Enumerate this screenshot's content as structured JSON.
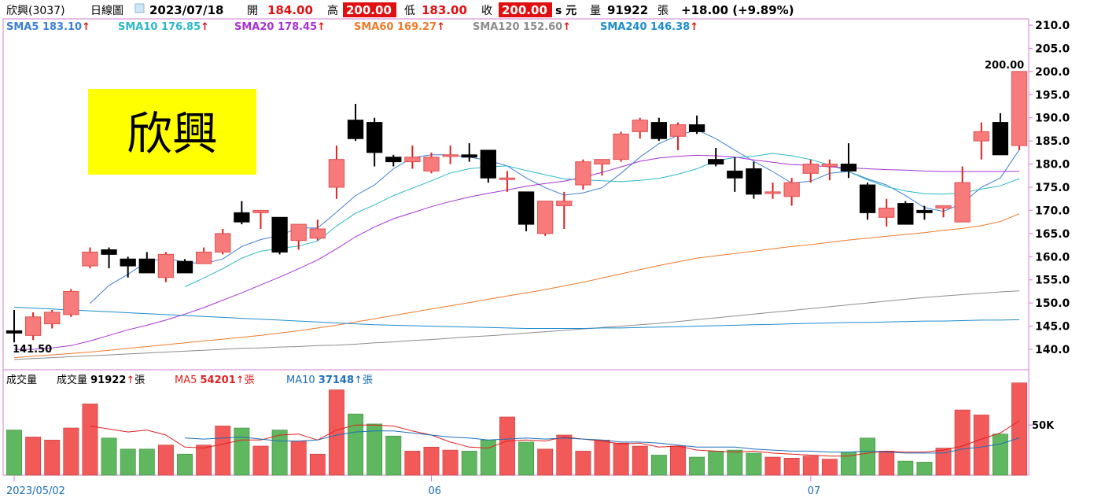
{
  "header": {
    "name": "欣興(3037)",
    "period": "日線圖",
    "date": "2023/07/18",
    "open_label": "開",
    "open": "184.00",
    "high_label": "高",
    "high": "200.00",
    "low_label": "低",
    "low": "183.00",
    "close_label": "收",
    "close": "200.00",
    "unit": "s 元",
    "vol_label": "量",
    "vol": "91922",
    "vol_unit": "張",
    "change": "+18.00 (+9.89%)"
  },
  "stock_label": "欣興",
  "ma_legend": [
    {
      "label": "SMA5",
      "value": "183.10",
      "color": "#3d7fd6"
    },
    {
      "label": "SMA10",
      "value": "176.85",
      "color": "#2bb8c8"
    },
    {
      "label": "SMA20",
      "value": "178.45",
      "color": "#a633d6"
    },
    {
      "label": "SMA60",
      "value": "169.27",
      "color": "#f07a2a"
    },
    {
      "label": "SMA120",
      "value": "152.60",
      "color": "#8c8c8c"
    },
    {
      "label": "SMA240",
      "value": "146.38",
      "color": "#1c8ccf"
    }
  ],
  "vol_legend": {
    "title": "成交量",
    "items": [
      {
        "label": "成交量",
        "value": "91922",
        "unit": "張",
        "color": "#000000"
      },
      {
        "label": "MA5",
        "value": "54201",
        "unit": "張",
        "color": "#e02020"
      },
      {
        "label": "MA10",
        "value": "37148",
        "unit": "張",
        "color": "#1c6fb8"
      }
    ]
  },
  "annotations": {
    "high_label": "200.00",
    "low_label": "141.50"
  },
  "colors": {
    "up": "#f77b7b",
    "down": "#000000",
    "vol_up": "#f25a5a",
    "vol_down": "#5fb85f",
    "frame": "#d27fd2",
    "arrow": "#e01010"
  },
  "chart_data": [
    {
      "type": "candlestick",
      "price_axis": {
        "ticks": [
          140.0,
          145.0,
          150.0,
          155.0,
          160.0,
          165.0,
          170.0,
          175.0,
          180.0,
          185.0,
          190.0,
          195.0,
          200.0,
          205.0,
          210.0
        ],
        "range": [
          137,
          211
        ]
      },
      "x_labels": [
        {
          "index": 0,
          "text": "2023/05/02"
        },
        {
          "index": 22,
          "text": "06"
        },
        {
          "index": 42,
          "text": "07"
        }
      ],
      "candles": [
        {
          "o": 144,
          "h": 148.5,
          "l": 141.5,
          "c": 143.5
        },
        {
          "o": 143,
          "h": 148,
          "l": 142,
          "c": 147
        },
        {
          "o": 145.5,
          "h": 148.5,
          "l": 144.5,
          "c": 148
        },
        {
          "o": 147.5,
          "h": 153,
          "l": 147,
          "c": 152.5
        },
        {
          "o": 158,
          "h": 162,
          "l": 157.5,
          "c": 161
        },
        {
          "o": 161.5,
          "h": 162,
          "l": 157.5,
          "c": 160.5
        },
        {
          "o": 159.5,
          "h": 160,
          "l": 155.5,
          "c": 158
        },
        {
          "o": 159.5,
          "h": 161,
          "l": 156.5,
          "c": 156.5
        },
        {
          "o": 155.5,
          "h": 161,
          "l": 154.5,
          "c": 160.5
        },
        {
          "o": 159,
          "h": 159.5,
          "l": 156.5,
          "c": 156.5
        },
        {
          "o": 158.5,
          "h": 162,
          "l": 158.5,
          "c": 161
        },
        {
          "o": 161,
          "h": 166,
          "l": 160.5,
          "c": 165
        },
        {
          "o": 169.5,
          "h": 172,
          "l": 167,
          "c": 167.5
        },
        {
          "o": 169.5,
          "h": 170,
          "l": 166,
          "c": 170
        },
        {
          "o": 168.5,
          "h": 168.5,
          "l": 160.5,
          "c": 161
        },
        {
          "o": 163.5,
          "h": 167,
          "l": 161.5,
          "c": 167
        },
        {
          "o": 164,
          "h": 168,
          "l": 163.5,
          "c": 166
        },
        {
          "o": 175,
          "h": 184,
          "l": 172.5,
          "c": 181
        },
        {
          "o": 189.5,
          "h": 193,
          "l": 185,
          "c": 185.5
        },
        {
          "o": 189,
          "h": 190,
          "l": 179.5,
          "c": 182.5
        },
        {
          "o": 181.5,
          "h": 182,
          "l": 179.5,
          "c": 180.5
        },
        {
          "o": 180.5,
          "h": 184,
          "l": 179,
          "c": 181.5
        },
        {
          "o": 178.5,
          "h": 182.5,
          "l": 178,
          "c": 181.5
        },
        {
          "o": 182,
          "h": 184,
          "l": 180,
          "c": 182
        },
        {
          "o": 182,
          "h": 184.5,
          "l": 180.5,
          "c": 181.5
        },
        {
          "o": 183,
          "h": 183,
          "l": 176,
          "c": 177
        },
        {
          "o": 177,
          "h": 178.5,
          "l": 174,
          "c": 177
        },
        {
          "o": 174,
          "h": 174,
          "l": 165.5,
          "c": 167
        },
        {
          "o": 165,
          "h": 172,
          "l": 164.5,
          "c": 172
        },
        {
          "o": 171,
          "h": 174,
          "l": 166,
          "c": 172
        },
        {
          "o": 175.5,
          "h": 181,
          "l": 174.5,
          "c": 180.5
        },
        {
          "o": 180,
          "h": 181,
          "l": 177.5,
          "c": 181
        },
        {
          "o": 181,
          "h": 187,
          "l": 180.5,
          "c": 186.5
        },
        {
          "o": 187,
          "h": 190,
          "l": 185.5,
          "c": 189.5
        },
        {
          "o": 189,
          "h": 190,
          "l": 185,
          "c": 185.5
        },
        {
          "o": 186,
          "h": 189,
          "l": 183,
          "c": 188.5
        },
        {
          "o": 188.5,
          "h": 190.5,
          "l": 186.5,
          "c": 187
        },
        {
          "o": 181,
          "h": 183.5,
          "l": 179.5,
          "c": 180
        },
        {
          "o": 178.5,
          "h": 181.5,
          "l": 174,
          "c": 177
        },
        {
          "o": 179,
          "h": 180.5,
          "l": 172.5,
          "c": 173.5
        },
        {
          "o": 174,
          "h": 176,
          "l": 172.5,
          "c": 174
        },
        {
          "o": 173,
          "h": 177,
          "l": 171,
          "c": 176
        },
        {
          "o": 178,
          "h": 181,
          "l": 176,
          "c": 180
        },
        {
          "o": 179.5,
          "h": 181,
          "l": 176.5,
          "c": 180
        },
        {
          "o": 180,
          "h": 184.5,
          "l": 177,
          "c": 178.5
        },
        {
          "o": 175.5,
          "h": 176,
          "l": 168,
          "c": 169.5
        },
        {
          "o": 168.5,
          "h": 172.5,
          "l": 166.5,
          "c": 170.5
        },
        {
          "o": 171.5,
          "h": 172,
          "l": 167,
          "c": 167
        },
        {
          "o": 170,
          "h": 171,
          "l": 168,
          "c": 169.5
        },
        {
          "o": 170.5,
          "h": 171,
          "l": 168.5,
          "c": 171
        },
        {
          "o": 167.5,
          "h": 179.5,
          "l": 167.5,
          "c": 176
        },
        {
          "o": 185,
          "h": 189,
          "l": 181,
          "c": 187
        },
        {
          "o": 189,
          "h": 191,
          "l": 182,
          "c": 182
        },
        {
          "o": 184,
          "h": 200,
          "l": 183,
          "c": 200
        }
      ],
      "series": [
        {
          "name": "SMA5",
          "values": [
            null,
            null,
            null,
            null,
            149.9,
            153.8,
            156.2,
            158.9,
            159.7,
            158.8,
            158.5,
            159.5,
            162.2,
            163.7,
            164.6,
            166.2,
            166.2,
            169.6,
            173.2,
            175.5,
            179,
            181.4,
            182,
            182,
            181.5,
            180.8,
            179.6,
            177,
            174.9,
            173.3,
            173.8,
            174.9,
            178,
            181.5,
            184.4,
            186.2,
            187.4,
            185.5,
            183,
            180.6,
            178.4,
            175.9,
            176.3,
            178,
            178.4,
            176.8,
            175.5,
            173.2,
            170.6,
            169.8,
            171.5,
            175,
            177,
            183.1
          ]
        },
        {
          "name": "SMA10",
          "values": [
            null,
            null,
            null,
            null,
            null,
            null,
            null,
            null,
            null,
            153.5,
            155.4,
            157.4,
            159.7,
            161.2,
            161.8,
            162.3,
            163.4,
            166.6,
            169.4,
            171.2,
            173.2,
            174.8,
            176.4,
            178.1,
            179,
            179.4,
            179.6,
            178.6,
            177.7,
            176.8,
            176.6,
            176.4,
            176.2,
            176.5,
            176.9,
            177.8,
            179,
            180.7,
            181.4,
            181.7,
            182.3,
            181.8,
            181,
            179.8,
            178.4,
            176.6,
            175.1,
            174.2,
            173.6,
            173.5,
            173.8,
            174.6,
            175.3,
            176.85
          ]
        },
        {
          "name": "SMA20",
          "values": [
            140,
            140,
            140.3,
            140.8,
            141.8,
            143,
            144.2,
            145.2,
            146.3,
            147.6,
            149,
            150.6,
            152.2,
            153.9,
            155.6,
            157.4,
            159.3,
            161.7,
            164.3,
            166.4,
            168.2,
            169.5,
            170.8,
            171.9,
            172.9,
            173.7,
            174.4,
            175.2,
            175.8,
            176.3,
            177.2,
            178.2,
            179.4,
            180.6,
            181.3,
            181.7,
            181.9,
            181.8,
            181.5,
            180.9,
            180.4,
            179.9,
            179.7,
            179.4,
            179.2,
            179,
            178.8,
            178.7,
            178.5,
            178.4,
            178.4,
            178.4,
            178.4,
            178.45
          ]
        },
        {
          "name": "SMA60",
          "values": [
            138.2,
            138.5,
            138.8,
            139.1,
            139.4,
            139.8,
            140.2,
            140.6,
            141,
            141.4,
            141.8,
            142.2,
            142.6,
            143,
            143.5,
            144,
            144.6,
            145.2,
            145.9,
            146.6,
            147.3,
            148,
            148.7,
            149.4,
            150.1,
            150.8,
            151.5,
            152.2,
            152.9,
            153.7,
            154.5,
            155.4,
            156.3,
            157.2,
            158.1,
            158.9,
            159.7,
            160.2,
            160.7,
            161.2,
            161.7,
            162.2,
            162.6,
            163.1,
            163.6,
            164,
            164.4,
            164.8,
            165.2,
            165.7,
            166.1,
            166.7,
            167.6,
            169.27
          ]
        },
        {
          "name": "SMA120",
          "values": [
            137.8,
            138,
            138.2,
            138.4,
            138.6,
            138.8,
            139,
            139.2,
            139.4,
            139.6,
            139.8,
            140,
            140.2,
            140.3,
            140.5,
            140.6,
            140.8,
            140.9,
            141.1,
            141.4,
            141.6,
            141.9,
            142.1,
            142.4,
            142.7,
            142.9,
            143.2,
            143.5,
            143.8,
            144.1,
            144.4,
            144.7,
            145,
            145.3,
            145.6,
            146,
            146.4,
            146.8,
            147.2,
            147.6,
            148,
            148.4,
            148.8,
            149.2,
            149.6,
            150,
            150.4,
            150.8,
            151.2,
            151.5,
            151.8,
            152.1,
            152.4,
            152.6
          ]
        },
        {
          "name": "SMA240",
          "values": [
            149.1,
            148.9,
            148.7,
            148.5,
            148.3,
            148.1,
            147.9,
            147.7,
            147.5,
            147.3,
            147.1,
            146.9,
            146.7,
            146.5,
            146.3,
            146.1,
            145.9,
            145.7,
            145.5,
            145.3,
            145.2,
            145.1,
            145,
            144.9,
            144.8,
            144.7,
            144.6,
            144.5,
            144.5,
            144.5,
            144.5,
            144.6,
            144.6,
            144.7,
            144.8,
            144.9,
            145,
            145.1,
            145.2,
            145.3,
            145.4,
            145.5,
            145.6,
            145.7,
            145.8,
            145.8,
            145.9,
            146,
            146.1,
            146.1,
            146.2,
            146.3,
            146.3,
            146.38
          ]
        }
      ]
    },
    {
      "type": "bar",
      "title": "成交量",
      "y_axis": {
        "ticks": [
          50000
        ],
        "tick_labels": [
          "50K"
        ],
        "range": [
          0,
          105000
        ]
      },
      "volumes": [
        45000,
        38000,
        35000,
        47000,
        71000,
        37000,
        26000,
        26000,
        30000,
        21000,
        30000,
        49000,
        47000,
        29000,
        45000,
        34000,
        21000,
        85000,
        61000,
        51000,
        39000,
        24000,
        28000,
        25000,
        24000,
        35000,
        58000,
        33000,
        26000,
        40000,
        24000,
        35000,
        32000,
        29000,
        20000,
        29000,
        18000,
        24000,
        25000,
        22000,
        18000,
        17000,
        19000,
        16000,
        23000,
        37000,
        24000,
        14000,
        13000,
        27000,
        65000,
        60000,
        41000,
        91922
      ],
      "series": [
        {
          "name": "MA5",
          "values": [
            null,
            null,
            null,
            null,
            49000,
            46000,
            43000,
            45000,
            40000,
            28000,
            27000,
            31000,
            35000,
            35000,
            40000,
            41000,
            35000,
            45000,
            50000,
            50000,
            49000,
            44000,
            40000,
            33000,
            28000,
            27000,
            34000,
            35000,
            34000,
            38000,
            36000,
            34000,
            31000,
            32000,
            28000,
            29000,
            25000,
            24000,
            23000,
            24000,
            22000,
            21000,
            20000,
            19000,
            19000,
            22000,
            24000,
            23000,
            23000,
            25000,
            29000,
            36000,
            42000,
            54201
          ]
        },
        {
          "name": "MA10",
          "values": [
            null,
            null,
            null,
            null,
            null,
            null,
            null,
            null,
            null,
            37000,
            36000,
            37000,
            38000,
            36000,
            34000,
            34000,
            35000,
            40000,
            43000,
            44000,
            44000,
            42000,
            40000,
            38000,
            37000,
            35000,
            36000,
            37000,
            36000,
            37000,
            36000,
            35000,
            33000,
            33000,
            32000,
            30000,
            28000,
            28000,
            28000,
            26000,
            25000,
            24000,
            24000,
            23000,
            23000,
            24000,
            23000,
            22000,
            22000,
            22000,
            26000,
            28000,
            31000,
            37148
          ]
        }
      ]
    }
  ]
}
